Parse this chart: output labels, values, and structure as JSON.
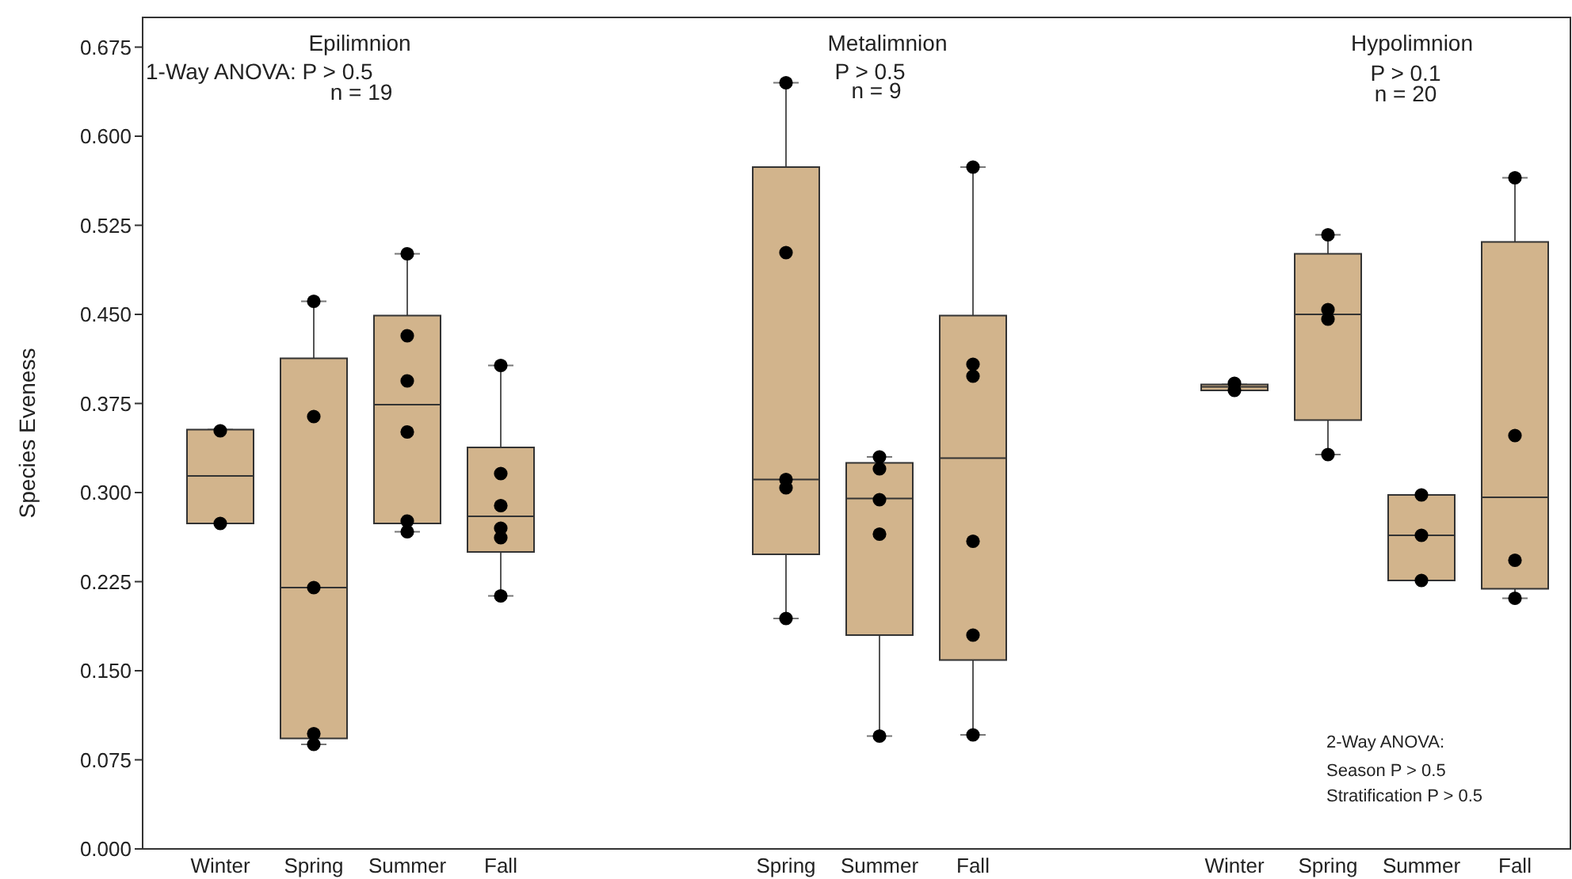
{
  "chart_data": [
    {
      "type": "box",
      "ylabel": "Species Eveness",
      "ylim": [
        0,
        0.7
      ],
      "yticks": [
        {
          "value": 0,
          "label": "0.000"
        },
        {
          "value": 0.075,
          "label": "0.075"
        },
        {
          "value": 0.15,
          "label": "0.150"
        },
        {
          "value": 0.225,
          "label": "0.225"
        },
        {
          "value": 0.3,
          "label": "0.300"
        },
        {
          "value": 0.375,
          "label": "0.375"
        },
        {
          "value": 0.45,
          "label": "0.450"
        },
        {
          "value": 0.525,
          "label": "0.525"
        },
        {
          "value": 0.6,
          "label": "0.600"
        },
        {
          "value": 0.675,
          "label": "0.675"
        }
      ],
      "categories": [
        "Winter",
        "Spring",
        "Summer",
        "Fall"
      ],
      "grid": false,
      "annotations": [
        "Epilimnion",
        "1-Way ANOVA: P > 0.5",
        "n = 19"
      ],
      "series": [
        {
          "color": "#d2b48c",
          "boxes": [
            {
              "low": 0.274,
              "q1": 0.274,
              "median": 0.314,
              "q3": 0.353,
              "high": 0.353
            },
            {
              "low": 0.088,
              "q1": 0.093,
              "median": 0.22,
              "q3": 0.413,
              "high": 0.461
            },
            {
              "low": 0.267,
              "q1": 0.274,
              "median": 0.374,
              "q3": 0.449,
              "high": 0.501
            },
            {
              "low": 0.213,
              "q1": 0.25,
              "median": 0.28,
              "q3": 0.338,
              "high": 0.407
            }
          ]
        },
        {
          "type": "scatter",
          "color": "#000000",
          "marker": "circle",
          "x": [
            "Winter",
            "Winter",
            "Spring",
            "Spring",
            "Spring",
            "Spring",
            "Spring",
            "Summer",
            "Summer",
            "Summer",
            "Summer",
            "Summer",
            "Summer",
            "Fall",
            "Fall",
            "Fall",
            "Fall",
            "Fall",
            "Fall"
          ],
          "values": [
            0.352,
            0.274,
            0.461,
            0.364,
            0.22,
            0.097,
            0.088,
            0.501,
            0.432,
            0.394,
            0.351,
            0.276,
            0.267,
            0.407,
            0.316,
            0.289,
            0.27,
            0.262,
            0.213
          ]
        }
      ]
    },
    {
      "type": "box",
      "ylim": [
        0,
        0.7
      ],
      "tick_labels": "x",
      "categories": [
        "Spring",
        "Summer",
        "Fall"
      ],
      "grid": false,
      "annotations": [
        "Metalimnion",
        "P > 0.5",
        "n = 9"
      ],
      "series": [
        {
          "color": "#d2b48c",
          "boxes": [
            {
              "low": 0.194,
              "q1": 0.248,
              "median": 0.311,
              "q3": 0.574,
              "high": 0.645
            },
            {
              "low": 0.095,
              "q1": 0.18,
              "median": 0.295,
              "q3": 0.325,
              "high": 0.33
            },
            {
              "low": 0.096,
              "q1": 0.159,
              "median": 0.329,
              "q3": 0.449,
              "high": 0.574
            }
          ]
        },
        {
          "type": "scatter",
          "color": "#000000",
          "marker": "circle",
          "x": [
            "Spring",
            "Spring",
            "Spring",
            "Spring",
            "Spring",
            "Summer",
            "Summer",
            "Summer",
            "Summer",
            "Summer",
            "Fall",
            "Fall",
            "Fall",
            "Fall",
            "Fall",
            "Fall"
          ],
          "values": [
            0.645,
            0.502,
            0.311,
            0.304,
            0.194,
            0.33,
            0.32,
            0.294,
            0.265,
            0.095,
            0.574,
            0.408,
            0.398,
            0.259,
            0.18,
            0.096
          ]
        }
      ]
    },
    {
      "type": "box",
      "ylim": [
        0,
        0.7
      ],
      "tick_labels": "x",
      "categories": [
        "Winter",
        "Spring",
        "Summer",
        "Fall"
      ],
      "grid": false,
      "annotations": [
        "Hypolimnion",
        "P > 0.1",
        "n = 20",
        "2-Way ANOVA:",
        "Season P > 0.5",
        "Stratification P > 0.5"
      ],
      "series": [
        {
          "color": "#d2b48c",
          "boxes": [
            {
              "low": 0.386,
              "q1": 0.386,
              "median": 0.389,
              "q3": 0.391,
              "high": 0.391
            },
            {
              "low": 0.332,
              "q1": 0.361,
              "median": 0.45,
              "q3": 0.501,
              "high": 0.517
            },
            {
              "low": 0.226,
              "q1": 0.226,
              "median": 0.264,
              "q3": 0.298,
              "high": 0.298
            },
            {
              "low": 0.211,
              "q1": 0.219,
              "median": 0.296,
              "q3": 0.511,
              "high": 0.565
            }
          ]
        },
        {
          "type": "scatter",
          "color": "#000000",
          "marker": "circle",
          "x": [
            "Winter",
            "Winter",
            "Spring",
            "Spring",
            "Spring",
            "Spring",
            "Summer",
            "Summer",
            "Summer",
            "Fall",
            "Fall",
            "Fall",
            "Fall"
          ],
          "values": [
            0.392,
            0.386,
            0.517,
            0.454,
            0.446,
            0.332,
            0.298,
            0.264,
            0.226,
            0.565,
            0.348,
            0.243,
            0.211
          ]
        }
      ]
    }
  ]
}
